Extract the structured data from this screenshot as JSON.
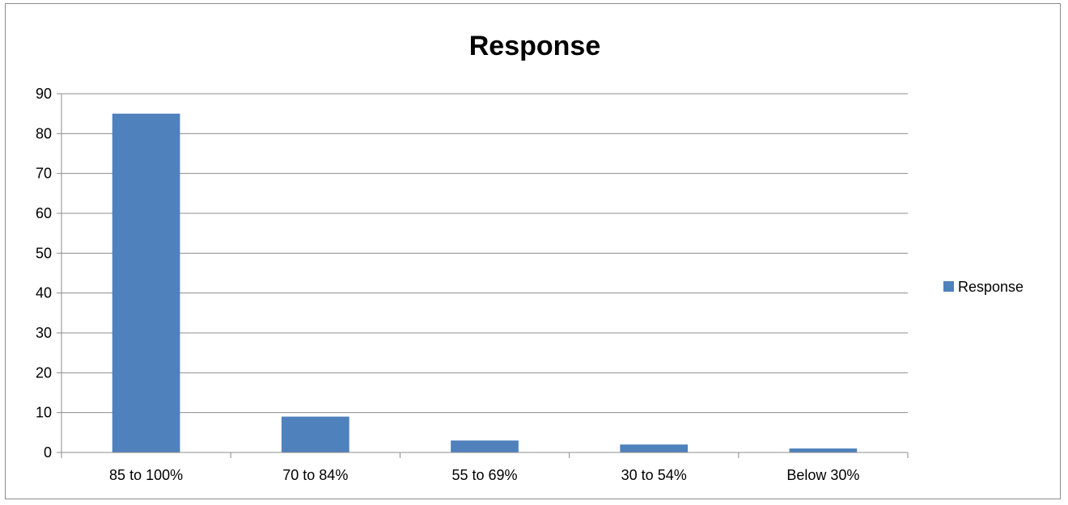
{
  "chart_data": {
    "type": "bar",
    "title": "Response",
    "xlabel": "",
    "ylabel": "",
    "categories": [
      "85 to 100%",
      "70 to 84%",
      "55 to 69%",
      "30 to 54%",
      "Below 30%"
    ],
    "series": [
      {
        "name": "Response",
        "values": [
          85,
          9,
          3,
          2,
          1
        ],
        "color": "#4f81bd"
      }
    ],
    "ylim": [
      0,
      90
    ],
    "yticks": [
      "0",
      "10",
      "20",
      "30",
      "40",
      "50",
      "60",
      "70",
      "80",
      "90"
    ],
    "grid": true,
    "legend_position": "right"
  }
}
